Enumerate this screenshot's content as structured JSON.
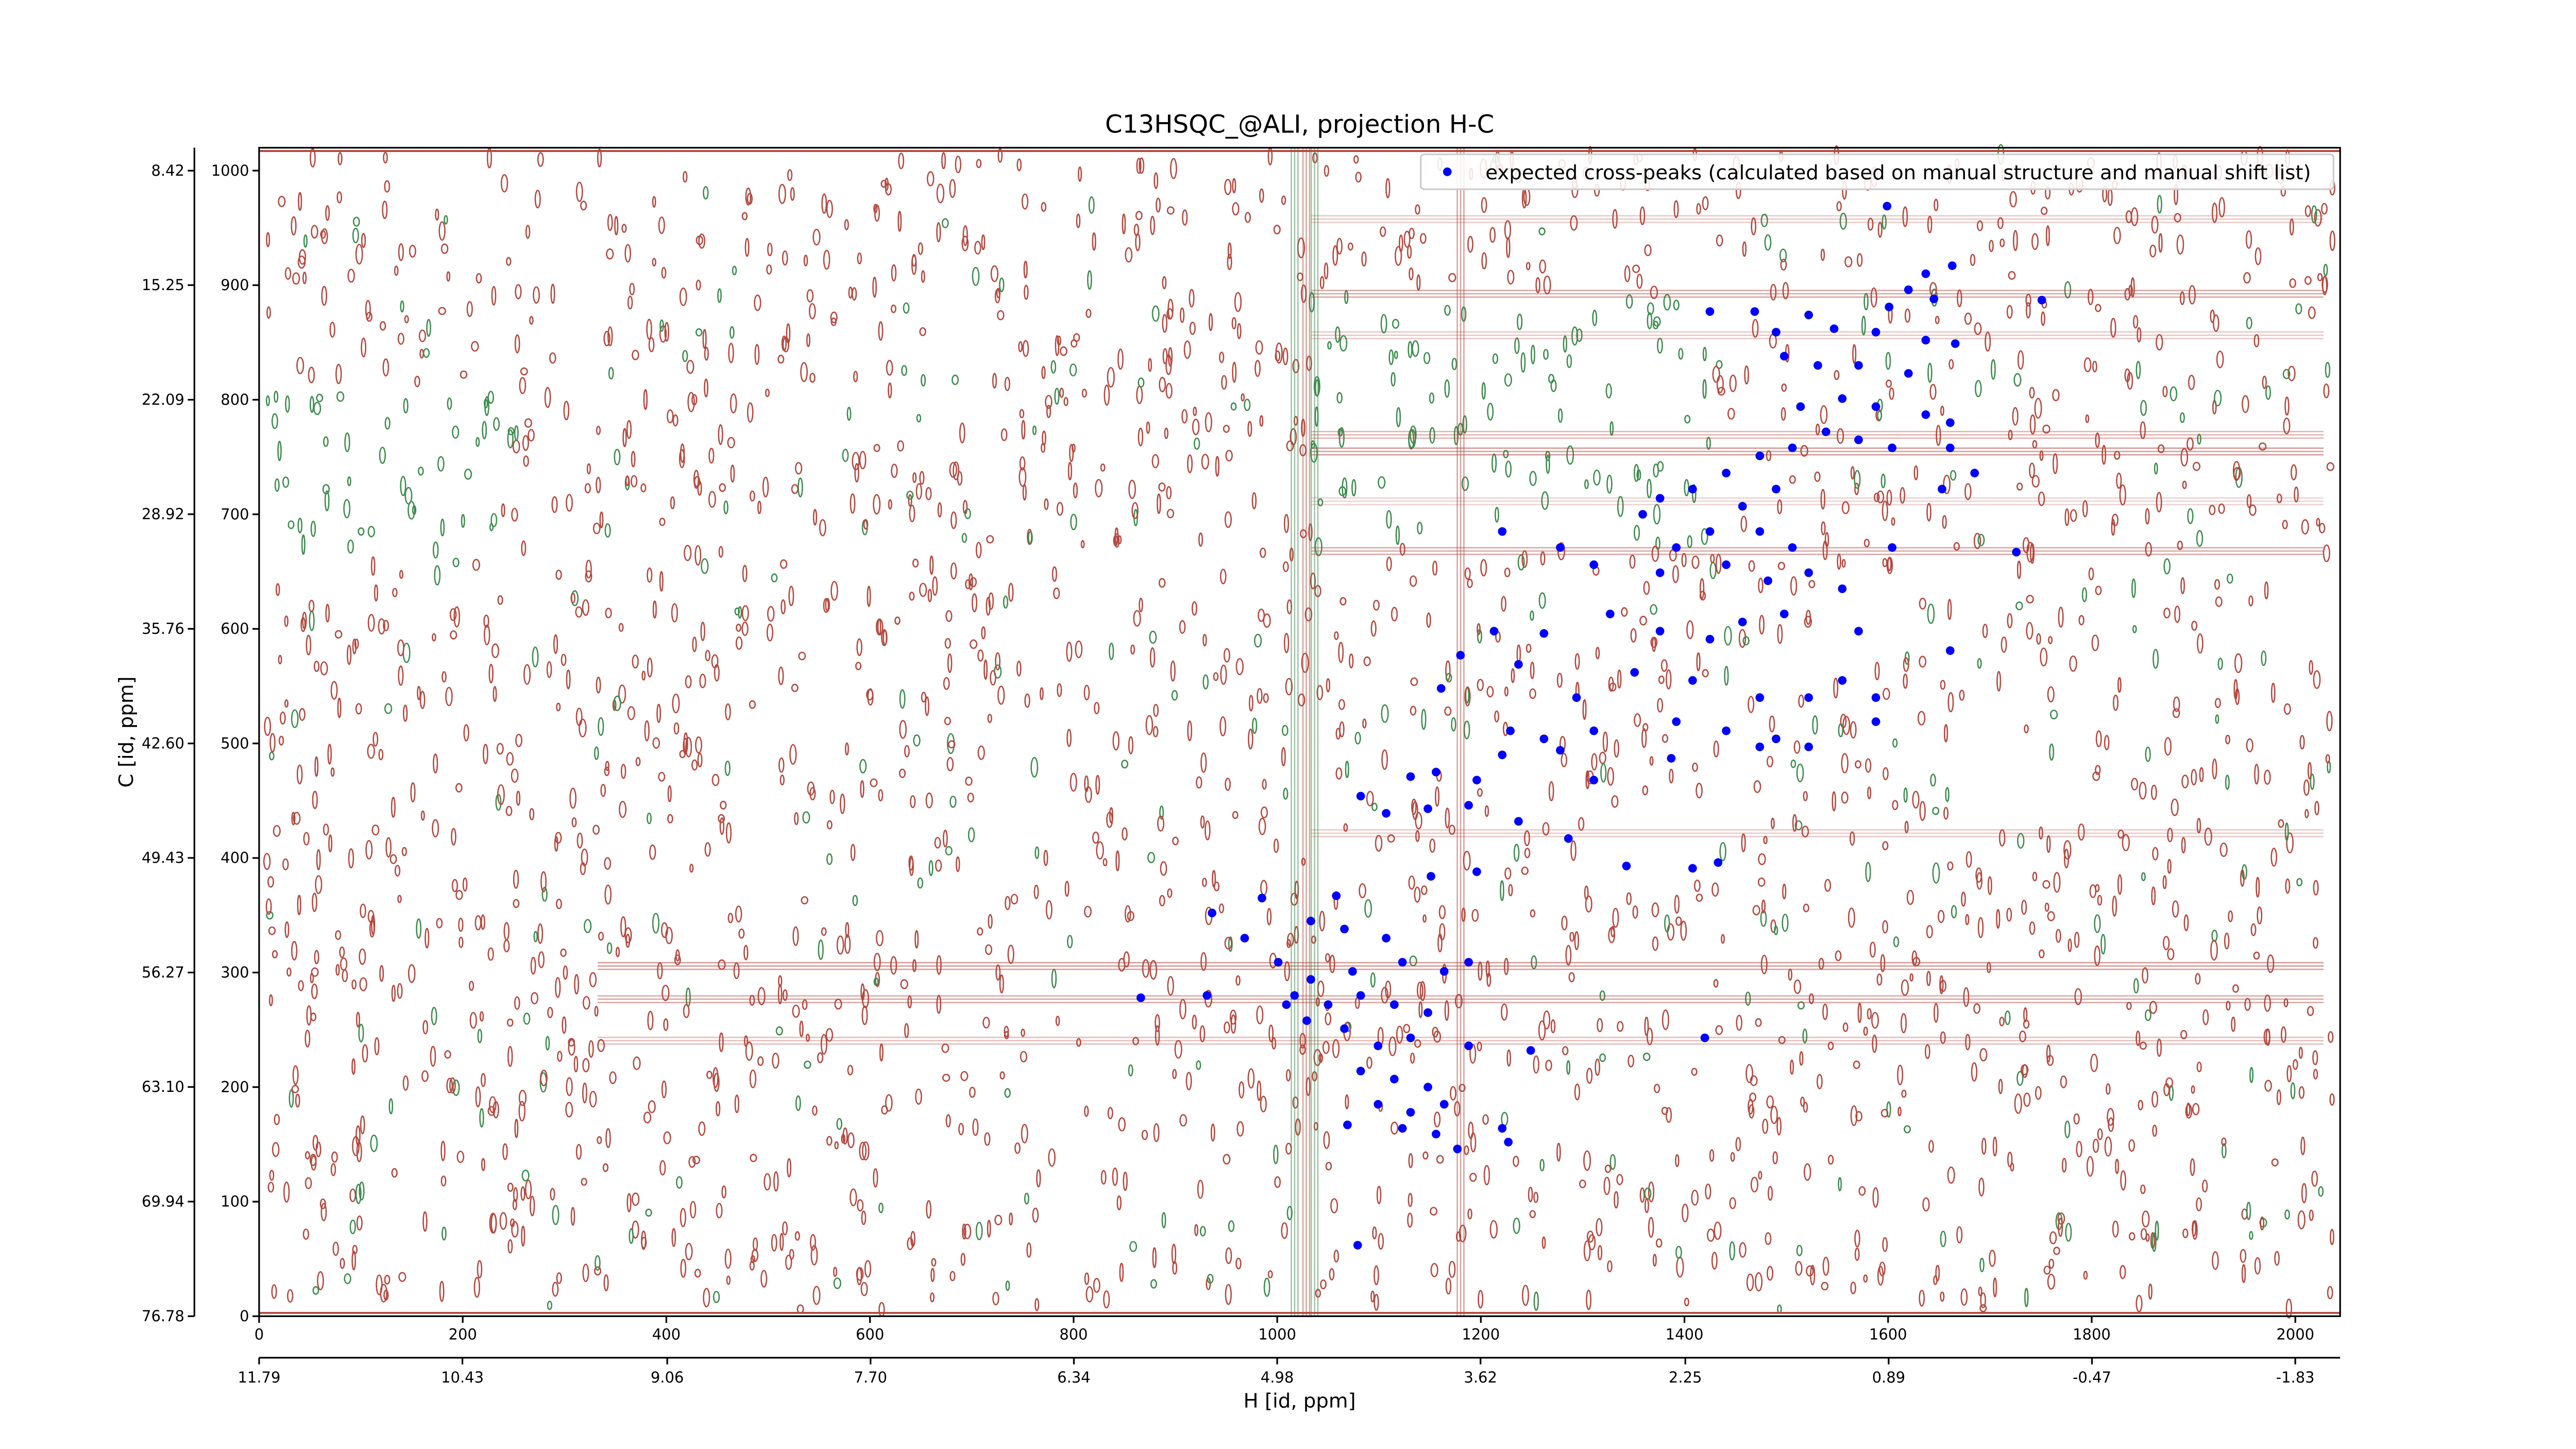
{
  "chart_data": {
    "type": "scatter",
    "title": "C13HSQC_@ALI, projection H-C",
    "xlabel": "H [id, ppm]",
    "ylabel": "C [id, ppm]",
    "xlim": [
      0,
      2044
    ],
    "xticks": [
      0,
      200,
      400,
      600,
      800,
      1000,
      1200,
      1400,
      1600,
      1800,
      2000
    ],
    "ylim": [
      0,
      1020
    ],
    "yticks": [
      0,
      100,
      200,
      300,
      400,
      500,
      600,
      700,
      800,
      900,
      1000
    ],
    "x2lim": [
      11.79,
      -2.13
    ],
    "x2ticks": [
      11.79,
      10.43,
      9.06,
      {
        "value": 7.7,
        "label": "7.70"
      },
      6.34,
      4.98,
      3.62,
      2.25,
      0.89,
      -0.47,
      -1.83
    ],
    "y2lim": [
      76.78,
      7.05
    ],
    "y2ticks": [
      8.42,
      15.25,
      22.09,
      28.92,
      35.76,
      {
        "value": 42.6,
        "label": "42.60"
      },
      49.43,
      56.27,
      {
        "value": 63.1,
        "label": "63.10"
      },
      69.94,
      76.78
    ],
    "legend": "upper right",
    "series": [
      {
        "name": "expected cross-peaks (calculated based on manual structure and manual shift list)",
        "color": "#0000ff",
        "x": [
          1599,
          1637,
          1663,
          1620,
          1645,
          1601,
          1751,
          1425,
          1469,
          1490,
          1522,
          1547,
          1588,
          1637,
          1666,
          1498,
          1531,
          1571,
          1620,
          1514,
          1555,
          1588,
          1637,
          1661,
          1539,
          1571,
          1604,
          1506,
          1474,
          1661,
          1685,
          1653,
          1441,
          1408,
          1376,
          1359,
          1457,
          1490,
          1425,
          1474,
          1506,
          1392,
          1726,
          1221,
          1278,
          1311,
          1376,
          1441,
          1482,
          1522,
          1555,
          1604,
          1327,
          1376,
          1425,
          1457,
          1498,
          1213,
          1262,
          1571,
          1661,
          1555,
          1180,
          1237,
          1351,
          1408,
          1474,
          1522,
          1588,
          1161,
          1294,
          1229,
          1262,
          1311,
          1392,
          1441,
          1490,
          1522,
          1588,
          1221,
          1278,
          1387,
          1474,
          1156,
          1196,
          1131,
          1082,
          1107,
          1148,
          1188,
          1237,
          1286,
          1311,
          1433,
          1408,
          1343,
          1196,
          1151,
          985,
          1058,
          936,
          968,
          1033,
          1066,
          1107,
          1001,
          1033,
          1074,
          1123,
          1164,
          1188,
          1017,
          1050,
          1082,
          1115,
          1148,
          866,
          931,
          1009,
          1029,
          1066,
          1099,
          1131,
          1188,
          1249,
          1420,
          1082,
          1115,
          1148,
          1099,
          1131,
          1164,
          1221,
          1069,
          1123,
          1156,
          1177,
          1227,
          1079
        ],
        "values": [
          969,
          910,
          917,
          896,
          888,
          881,
          887,
          877,
          877,
          859,
          874,
          862,
          859,
          852,
          849,
          838,
          830,
          830,
          823,
          794,
          801,
          794,
          787,
          780,
          772,
          765,
          758,
          758,
          751,
          758,
          736,
          722,
          736,
          722,
          714,
          700,
          707,
          722,
          685,
          685,
          671,
          671,
          667,
          685,
          671,
          656,
          649,
          656,
          642,
          649,
          635,
          671,
          613,
          598,
          591,
          606,
          613,
          598,
          596,
          598,
          581,
          555,
          577,
          569,
          562,
          555,
          540,
          540,
          540,
          548,
          540,
          511,
          504,
          511,
          519,
          511,
          504,
          497,
          519,
          490,
          494,
          487,
          497,
          475,
          468,
          471,
          454,
          439,
          443,
          446,
          432,
          417,
          468,
          396,
          391,
          393,
          388,
          384,
          365,
          367,
          352,
          330,
          345,
          338,
          330,
          309,
          294,
          301,
          309,
          301,
          309,
          280,
          272,
          280,
          272,
          265,
          278,
          280,
          272,
          258,
          251,
          236,
          243,
          236,
          232,
          243,
          214,
          207,
          200,
          185,
          178,
          185,
          164,
          167,
          164,
          159,
          146,
          152,
          62
        ]
      }
    ]
  }
}
